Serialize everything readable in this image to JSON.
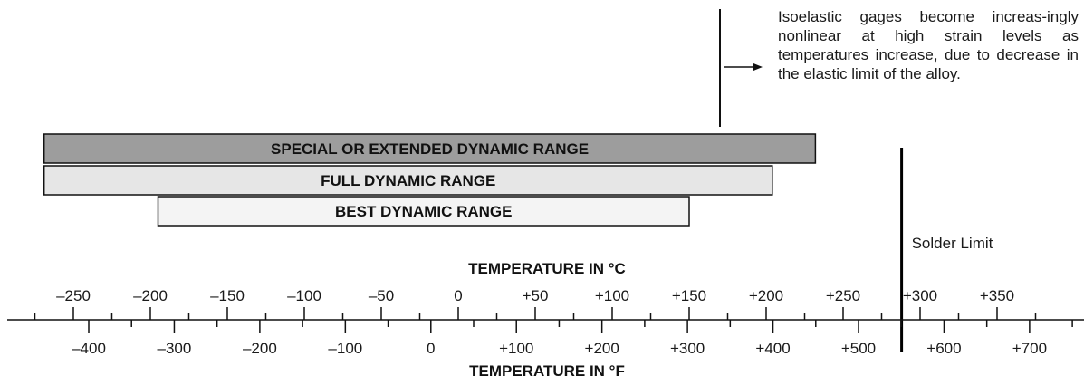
{
  "annotation": {
    "text": "Isoelastic gages become increas-ingly nonlinear at high strain levels as temperatures increase, due to decrease in the elastic limit of the alloy."
  },
  "solder_limit": {
    "label": "Solder Limit",
    "celsius": 288
  },
  "ranges": [
    {
      "label": "SPECIAL OR EXTENDED DYNAMIC RANGE",
      "min_c": -269,
      "max_c": 232,
      "fill": "#9d9d9d"
    },
    {
      "label": "FULL DYNAMIC RANGE",
      "min_c": -269,
      "max_c": 204,
      "fill": "#e6e6e6"
    },
    {
      "label": "BEST DYNAMIC RANGE",
      "min_c": -195,
      "max_c": 150,
      "fill": "#f4f4f4"
    }
  ],
  "celsius_axis": {
    "title": "TEMPERATURE IN °C",
    "ticks": [
      {
        "value": -250,
        "label": "–250"
      },
      {
        "value": -200,
        "label": "–200"
      },
      {
        "value": -150,
        "label": "–150"
      },
      {
        "value": -100,
        "label": "–100"
      },
      {
        "value": -50,
        "label": "–50"
      },
      {
        "value": 0,
        "label": "0"
      },
      {
        "value": 50,
        "label": "+50"
      },
      {
        "value": 100,
        "label": "+100"
      },
      {
        "value": 150,
        "label": "+150"
      },
      {
        "value": 200,
        "label": "+200"
      },
      {
        "value": 250,
        "label": "+250"
      },
      {
        "value": 300,
        "label": "+300"
      },
      {
        "value": 350,
        "label": "+350"
      }
    ]
  },
  "fahrenheit_axis": {
    "title": "TEMPERATURE IN °F",
    "ticks": [
      {
        "value": -400,
        "label": "–400"
      },
      {
        "value": -300,
        "label": "–300"
      },
      {
        "value": -200,
        "label": "–200"
      },
      {
        "value": -100,
        "label": "–100"
      },
      {
        "value": 0,
        "label": "0"
      },
      {
        "value": 100,
        "label": "+100"
      },
      {
        "value": 200,
        "label": "+200"
      },
      {
        "value": 300,
        "label": "+300"
      },
      {
        "value": 400,
        "label": "+400"
      },
      {
        "value": 500,
        "label": "+500"
      },
      {
        "value": 600,
        "label": "+600"
      },
      {
        "value": 700,
        "label": "+700"
      }
    ]
  }
}
